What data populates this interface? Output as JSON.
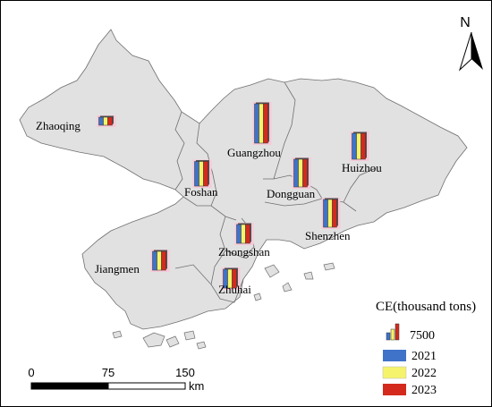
{
  "north_arrow": {
    "label": "N",
    "icon": "north-arrow-icon"
  },
  "colors": {
    "y2021": "#3f73c9",
    "y2022": "#f4f36b",
    "y2023": "#d42a1e",
    "land": "#e1e1e1",
    "border": "#7f7f7f"
  },
  "cities": [
    {
      "name": "Zhaoqing",
      "bars": [
        0.18,
        0.18,
        0.18
      ]
    },
    {
      "name": "Guangzhou",
      "bars": [
        0.88,
        0.88,
        0.88
      ]
    },
    {
      "name": "Huizhou",
      "bars": [
        0.58,
        0.58,
        0.58
      ]
    },
    {
      "name": "Foshan",
      "bars": [
        0.55,
        0.55,
        0.55
      ]
    },
    {
      "name": "Dongguan",
      "bars": [
        0.62,
        0.62,
        0.62
      ]
    },
    {
      "name": "Shenzhen",
      "bars": [
        0.62,
        0.62,
        0.62
      ]
    },
    {
      "name": "Zhongshan",
      "bars": [
        0.42,
        0.42,
        0.42
      ]
    },
    {
      "name": "Jiangmen",
      "bars": [
        0.42,
        0.42,
        0.42
      ]
    },
    {
      "name": "Zhuhai",
      "bars": [
        0.42,
        0.42,
        0.42
      ]
    }
  ],
  "legend": {
    "title": "CE(thousand tons)",
    "size_value": "7500",
    "years": [
      "2021",
      "2022",
      "2023"
    ]
  },
  "scale_bar": {
    "ticks": [
      "0",
      "75",
      "150"
    ],
    "unit": "km"
  }
}
